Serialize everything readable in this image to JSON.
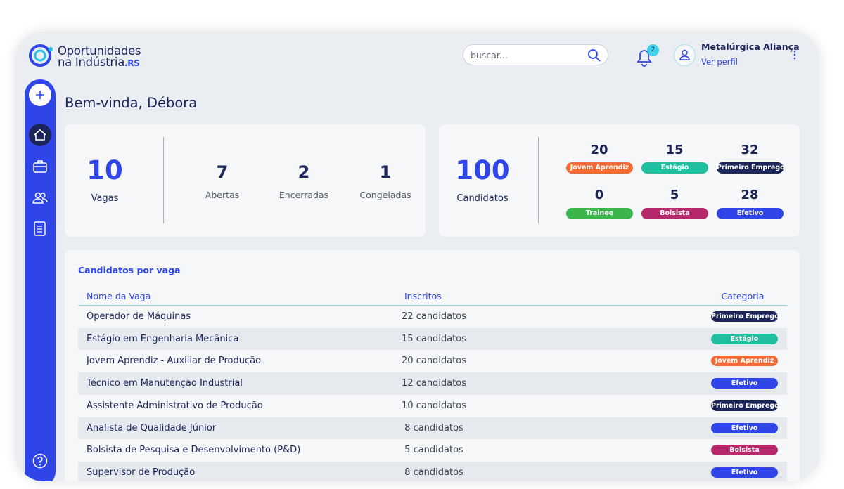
{
  "brand": {
    "line1": "Oportunidades",
    "line2": "na Indústria",
    "suffix": ".RS"
  },
  "search": {
    "placeholder": "buscar..."
  },
  "notifications": {
    "count": 2
  },
  "profile": {
    "name": "Metalúrgica Aliança",
    "link": "Ver perfil"
  },
  "greeting": "Bem-vinda, Débora",
  "vagas": {
    "total": 10,
    "label": "Vagas",
    "breakdown": [
      {
        "value": 7,
        "label": "Abertas"
      },
      {
        "value": 2,
        "label": "Encerradas"
      },
      {
        "value": 1,
        "label": "Congeladas"
      }
    ]
  },
  "candidatos": {
    "total": 100,
    "label": "Candidatos",
    "categories": [
      {
        "value": 20,
        "label": "Jovem Aprendiz",
        "color": "#f26a35"
      },
      {
        "value": 15,
        "label": "Estágio",
        "color": "#1fbfa0"
      },
      {
        "value": 32,
        "label": "Primeiro Emprego",
        "color": "#1b2559"
      },
      {
        "value": 0,
        "label": "Trainee",
        "color": "#3bb54a"
      },
      {
        "value": 5,
        "label": "Bolsista",
        "color": "#b5286a"
      },
      {
        "value": 28,
        "label": "Efetivo",
        "color": "#2f45e8"
      }
    ]
  },
  "table": {
    "title": "Candidatos por vaga",
    "columns": [
      "Nome da Vaga",
      "Inscritos",
      "Categoria"
    ],
    "rows": [
      [
        "Operador de Máquinas",
        "22 candidatos",
        "Primeiro Emprego"
      ],
      [
        "Estágio em Engenharia Mecânica",
        "15 candidatos",
        "Estágio"
      ],
      [
        "Jovem Aprendiz - Auxiliar de Produção",
        "20 candidatos",
        "Jovem Aprendiz"
      ],
      [
        "Técnico em Manutenção Industrial",
        "12 candidatos",
        "Efetivo"
      ],
      [
        "Assistente Administrativo de Produção",
        "10 candidatos",
        "Primeiro Emprego"
      ],
      [
        "Analista de Qualidade Júnior",
        "8 candidatos",
        "Efetivo"
      ],
      [
        "Bolsista de Pesquisa e Desenvolvimento (P&D)",
        "5 candidatos",
        "Bolsista"
      ],
      [
        "Supervisor de Produção",
        "8 candidatos",
        "Efetivo"
      ]
    ]
  }
}
